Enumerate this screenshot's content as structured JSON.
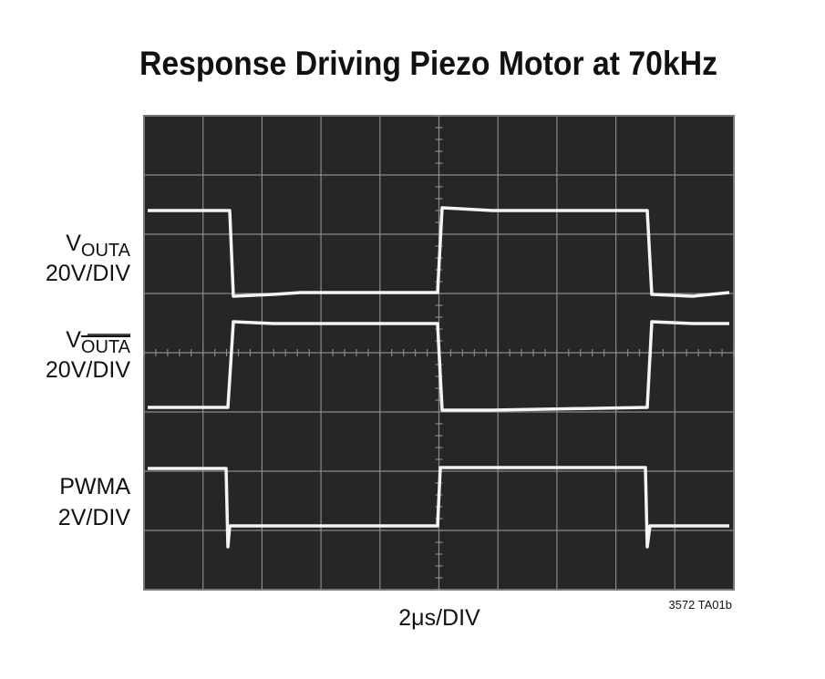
{
  "title": "Response Driving Piezo Motor at 70kHz",
  "channels": [
    {
      "symbol": "V",
      "subscript": "OUTA",
      "scale": "20V/DIV"
    },
    {
      "symbol": "V",
      "subscript": "OUTA",
      "scale": "20V/DIV"
    },
    {
      "name": "PWMA",
      "scale": "2V/DIV"
    }
  ],
  "x_label": "2μs/DIV",
  "figure_id": "3572 TA01b"
}
